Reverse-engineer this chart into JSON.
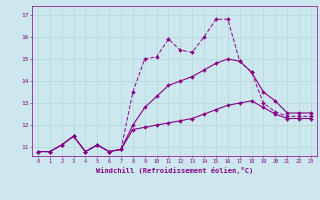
{
  "xlabel": "Windchill (Refroidissement éolien,°C)",
  "background_color": "#cce8ee",
  "grid_color": "#aacccc",
  "line_color": "#880088",
  "ylim": [
    10.6,
    17.4
  ],
  "yticks": [
    11,
    12,
    13,
    14,
    15,
    16,
    17
  ],
  "xticks": [
    0,
    1,
    2,
    3,
    4,
    5,
    6,
    7,
    8,
    9,
    10,
    11,
    12,
    13,
    14,
    15,
    16,
    17,
    18,
    19,
    20,
    21,
    22,
    23
  ],
  "hours": [
    0,
    1,
    2,
    3,
    4,
    5,
    6,
    7,
    8,
    9,
    10,
    11,
    12,
    13,
    14,
    15,
    16,
    17,
    18,
    19,
    20,
    21,
    22,
    23
  ],
  "series_dashed": [
    10.8,
    10.8,
    11.1,
    11.5,
    10.8,
    11.1,
    10.8,
    10.9,
    13.5,
    15.0,
    15.1,
    15.9,
    15.4,
    15.3,
    16.0,
    16.8,
    16.8,
    14.9,
    14.4,
    13.0,
    12.6,
    12.4,
    12.4,
    12.4
  ],
  "series_mid": [
    10.8,
    10.8,
    11.1,
    11.5,
    10.8,
    11.1,
    10.8,
    10.9,
    12.0,
    12.8,
    13.3,
    13.8,
    14.0,
    14.2,
    14.5,
    14.8,
    15.0,
    14.9,
    14.4,
    13.5,
    13.1,
    12.55,
    12.55,
    12.55
  ],
  "series_flat": [
    10.8,
    10.8,
    11.1,
    11.5,
    10.8,
    11.1,
    10.8,
    10.9,
    11.8,
    11.9,
    12.0,
    12.1,
    12.2,
    12.3,
    12.5,
    12.7,
    12.9,
    13.0,
    13.1,
    12.8,
    12.5,
    12.3,
    12.3,
    12.3
  ]
}
